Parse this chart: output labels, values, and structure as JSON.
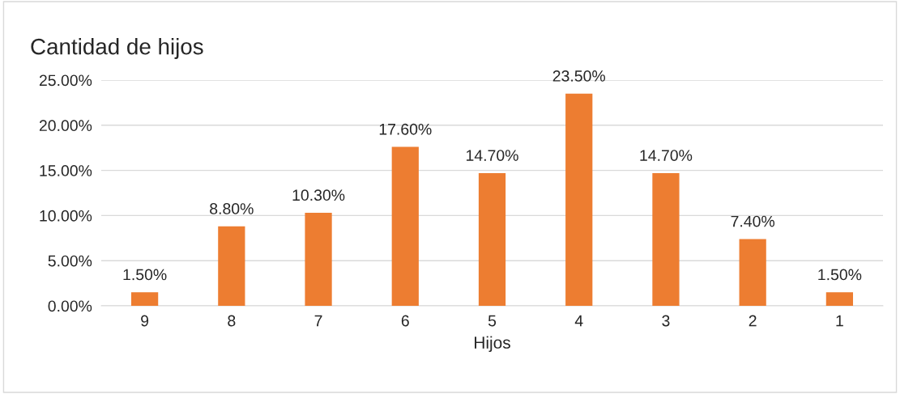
{
  "chart_data": {
    "type": "bar",
    "title": "Cantidad de hijos",
    "xlabel": "Hijos",
    "categories": [
      "9",
      "8",
      "7",
      "6",
      "5",
      "4",
      "3",
      "2",
      "1"
    ],
    "values": [
      1.5,
      8.8,
      10.3,
      17.6,
      14.7,
      23.5,
      14.7,
      7.4,
      1.5
    ],
    "value_labels": [
      "1.50%",
      "8.80%",
      "10.30%",
      "17.60%",
      "14.70%",
      "23.50%",
      "14.70%",
      "7.40%",
      "1.50%"
    ],
    "color": "#ed7d31",
    "ylim": [
      0,
      25
    ],
    "yticks": [
      {
        "value": 0,
        "label": "0.00%"
      },
      {
        "value": 5,
        "label": "5.00%"
      },
      {
        "value": 10,
        "label": "10.00%"
      },
      {
        "value": 15,
        "label": "15.00%"
      },
      {
        "value": 20,
        "label": "20.00%"
      },
      {
        "value": 25,
        "label": "25.00%"
      }
    ],
    "grid": "y",
    "legend": false
  }
}
